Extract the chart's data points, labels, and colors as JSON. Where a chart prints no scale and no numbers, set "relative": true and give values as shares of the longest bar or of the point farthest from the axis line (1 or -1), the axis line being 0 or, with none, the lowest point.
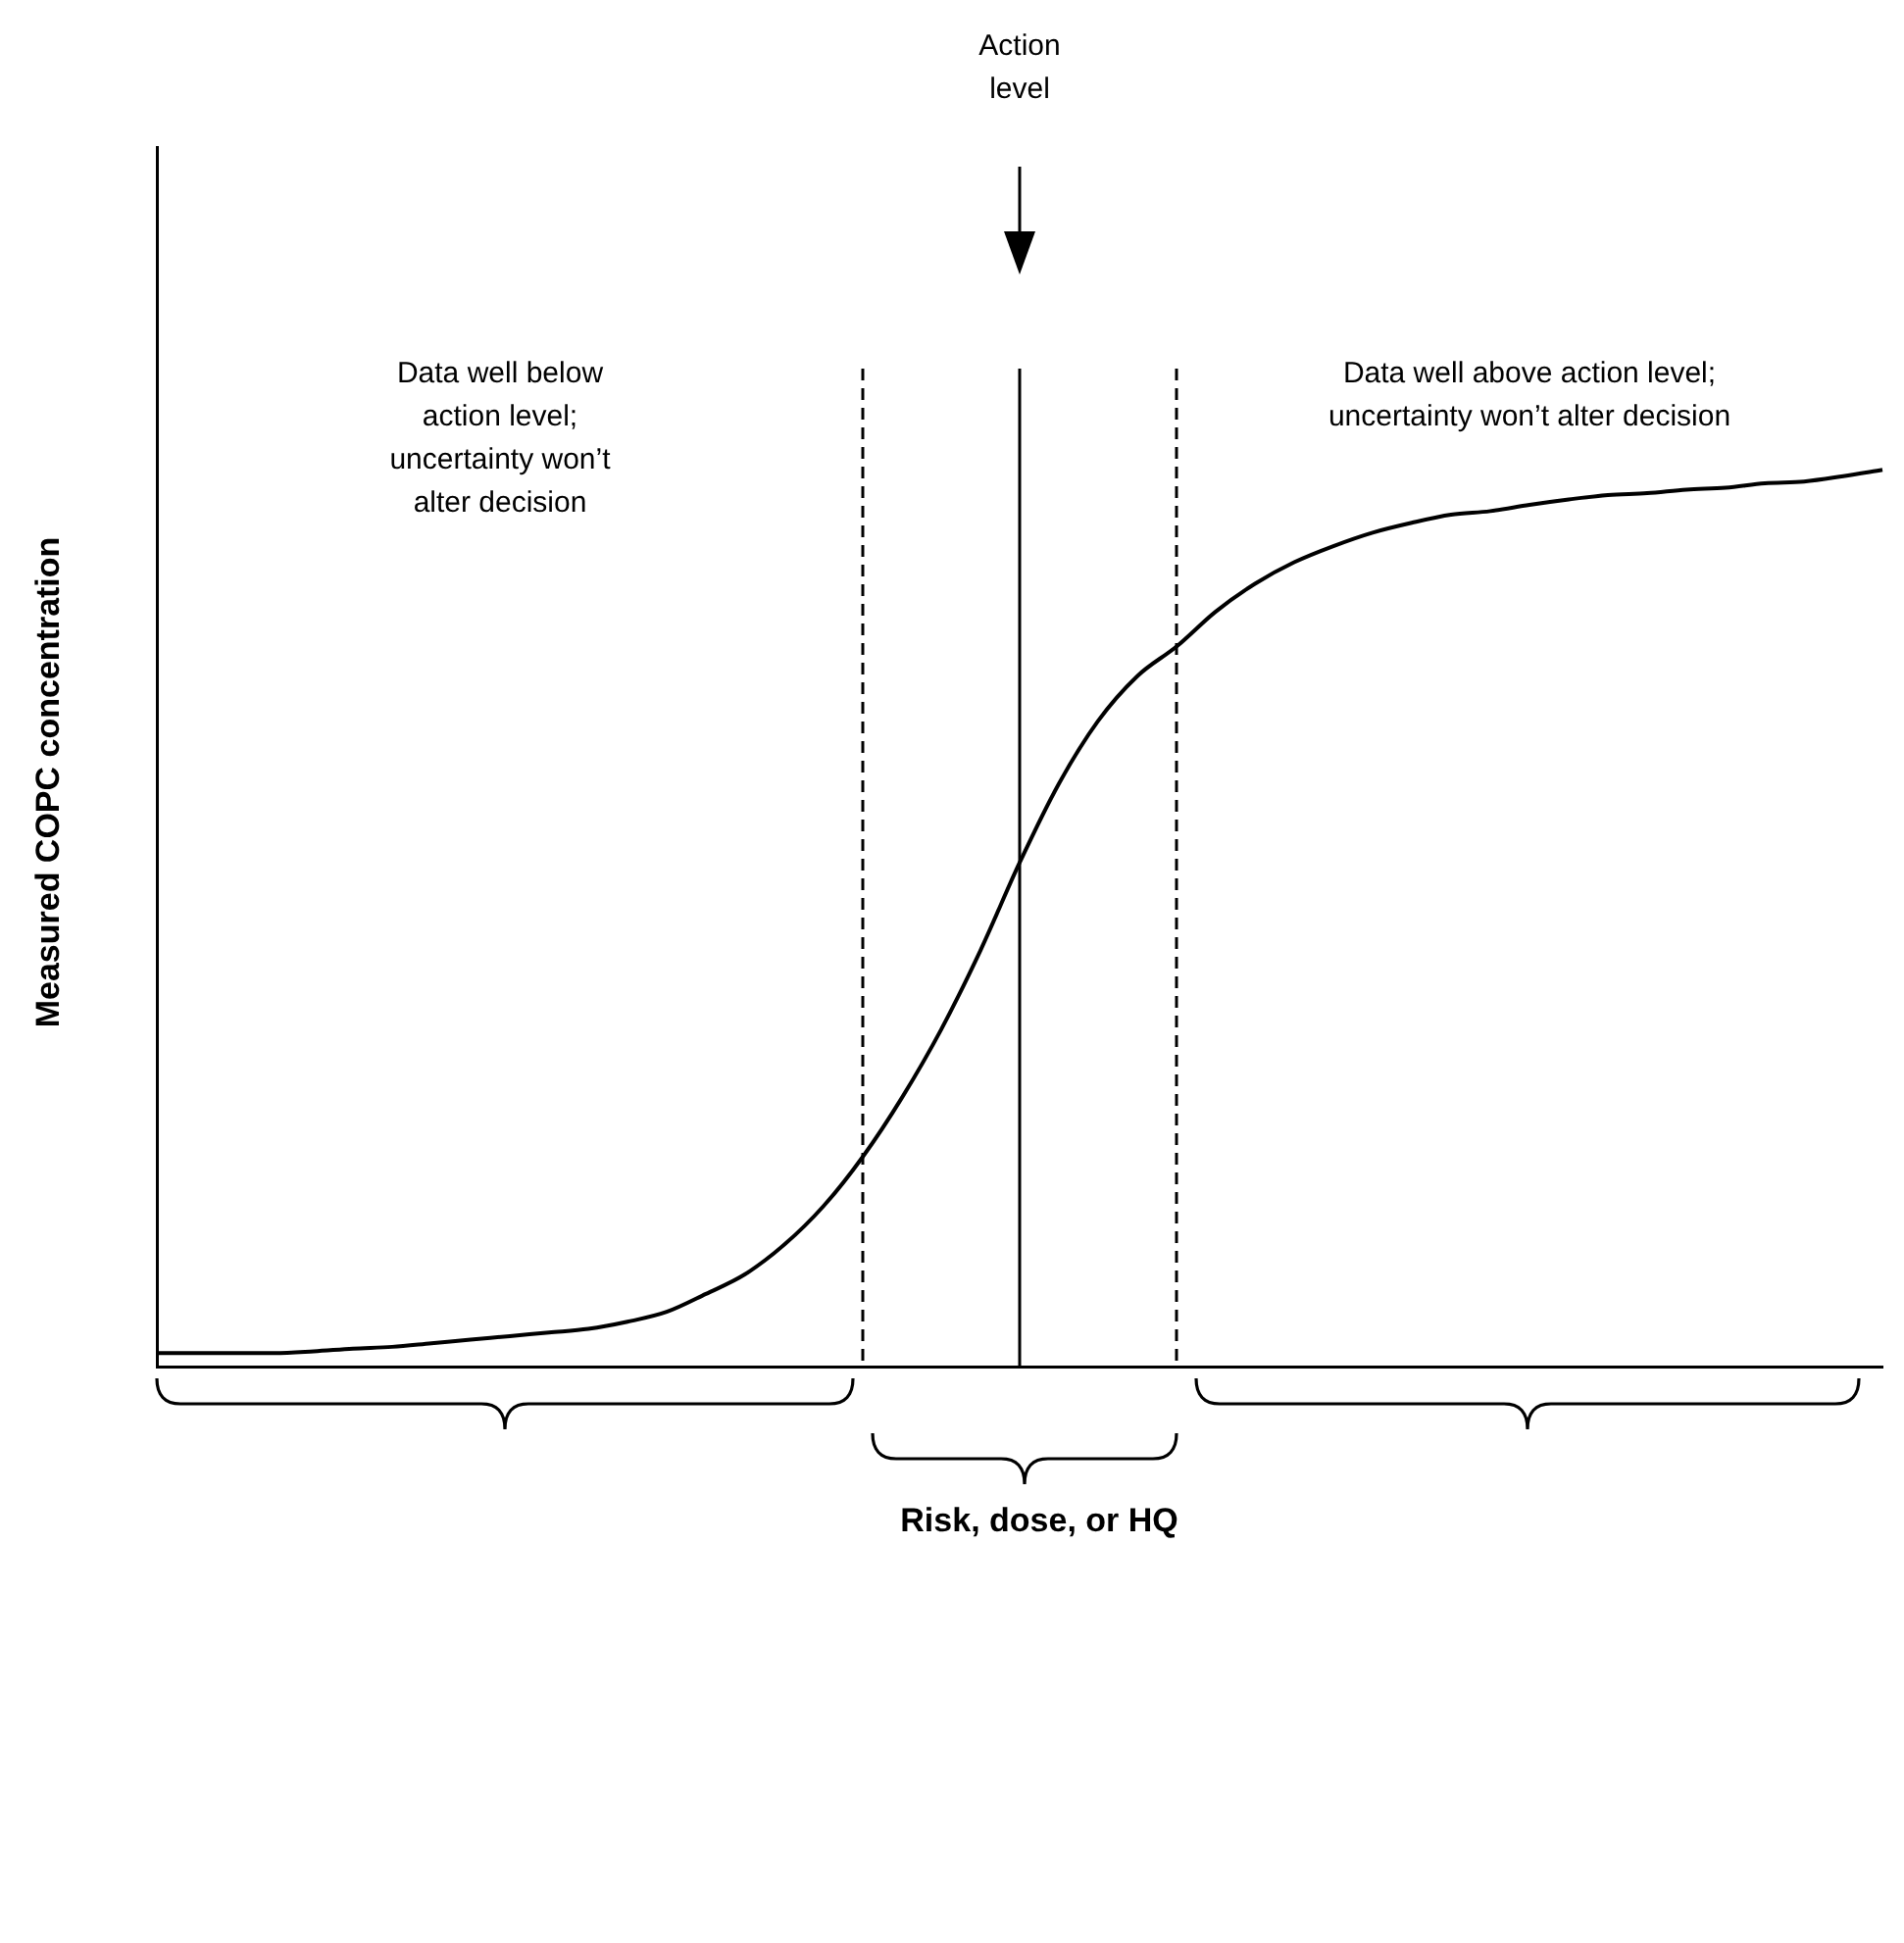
{
  "chart_data": {
    "type": "line",
    "relative": true,
    "xlabel": "Risk, dose, or HQ",
    "ylabel": "Measured COPC concentration",
    "categories": [
      null,
      null,
      null,
      null,
      null,
      null,
      null,
      null,
      null,
      null,
      null,
      null,
      null,
      null,
      null,
      null,
      null,
      null,
      null,
      null,
      null,
      null,
      null,
      null,
      null,
      null,
      null,
      null,
      null,
      null,
      null,
      null,
      null,
      null,
      null,
      null,
      null,
      null,
      null,
      null,
      null,
      null,
      null,
      null,
      null
    ],
    "series": [
      {
        "color": "#000000",
        "values": [
          0.015,
          0.015,
          0.015,
          0.015,
          0.017,
          0.02,
          0.022,
          0.026,
          0.03,
          0.034,
          0.038,
          0.042,
          0.05,
          0.061,
          0.081,
          0.103,
          0.136,
          0.179,
          0.234,
          0.3,
          0.376,
          0.464,
          0.562,
          0.65,
          0.72,
          0.77,
          0.803,
          0.842,
          0.873,
          0.897,
          0.915,
          0.93,
          0.941,
          0.95,
          0.954,
          0.961,
          0.967,
          0.972,
          0.974,
          0.978,
          0.98,
          0.985,
          0.987,
          0.993,
          1
        ]
      }
    ],
    "annotations": [
      "Action level",
      "Data well below action level; uncertainty won’t alter decision",
      "Data well above action level; uncertainty won’t alter decision"
    ],
    "grid": false
  }
}
